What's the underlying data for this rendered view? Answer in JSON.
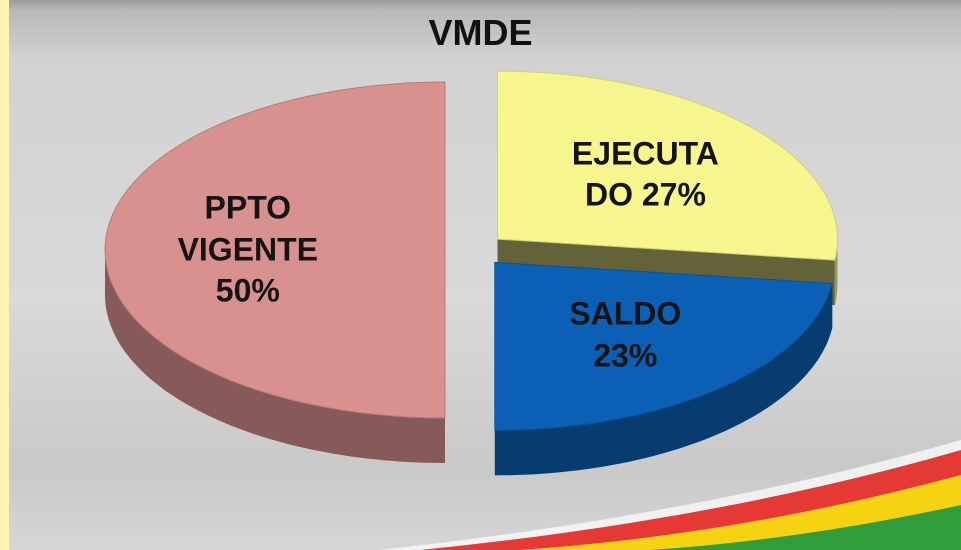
{
  "chart_data": {
    "type": "pie",
    "title": "VMDE",
    "categories": [
      "EJECUTADO",
      "SALDO",
      "PPTO VIGENTE"
    ],
    "values": [
      27,
      23,
      50
    ],
    "value_labels": [
      "27%",
      "23%",
      "50%"
    ],
    "colors": [
      "#f7f58e",
      "#0b60b5",
      "#d8918f"
    ]
  }
}
